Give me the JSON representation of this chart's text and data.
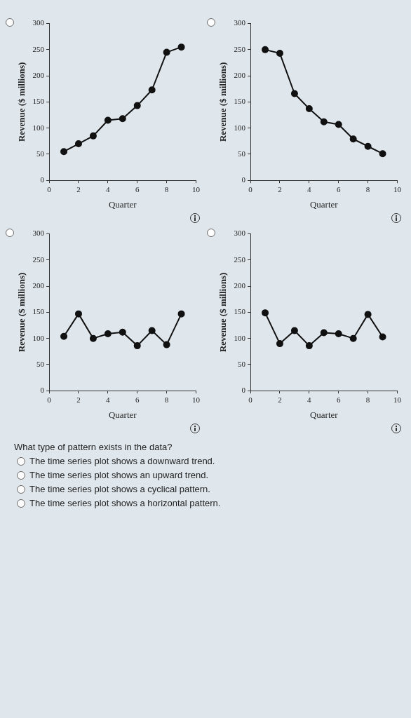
{
  "chart_data": [
    {
      "type": "line",
      "xlabel": "Quarter",
      "ylabel": "Revenue ($ millions)",
      "x": [
        1,
        2,
        3,
        4,
        5,
        6,
        7,
        8,
        9
      ],
      "xlim": [
        0,
        10
      ],
      "xticks": [
        0,
        2,
        4,
        6,
        8,
        10
      ],
      "ylim": [
        0,
        300
      ],
      "yticks": [
        0,
        50,
        100,
        150,
        200,
        250,
        300
      ],
      "marker": "circle",
      "line_style": "solid",
      "grid": false,
      "legend": false,
      "series": [
        {
          "color": "#111111",
          "values": [
            55,
            70,
            85,
            115,
            118,
            143,
            173,
            245,
            255
          ]
        }
      ]
    },
    {
      "type": "line",
      "xlabel": "Quarter",
      "ylabel": "Revenue ($ millions)",
      "x": [
        1,
        2,
        3,
        4,
        5,
        6,
        7,
        8,
        9
      ],
      "xlim": [
        0,
        10
      ],
      "xticks": [
        0,
        2,
        4,
        6,
        8,
        10
      ],
      "ylim": [
        0,
        300
      ],
      "yticks": [
        0,
        50,
        100,
        150,
        200,
        250,
        300
      ],
      "marker": "circle",
      "line_style": "solid",
      "grid": false,
      "legend": false,
      "series": [
        {
          "color": "#111111",
          "values": [
            250,
            243,
            166,
            137,
            112,
            107,
            79,
            65,
            51
          ]
        }
      ]
    },
    {
      "type": "line",
      "xlabel": "Quarter",
      "ylabel": "Revenue ($ millions)",
      "x": [
        1,
        2,
        3,
        4,
        5,
        6,
        7,
        8,
        9
      ],
      "xlim": [
        0,
        10
      ],
      "xticks": [
        0,
        2,
        4,
        6,
        8,
        10
      ],
      "ylim": [
        0,
        300
      ],
      "yticks": [
        0,
        50,
        100,
        150,
        200,
        250,
        300
      ],
      "marker": "circle",
      "line_style": "solid",
      "grid": false,
      "legend": false,
      "series": [
        {
          "color": "#111111",
          "values": [
            104,
            147,
            100,
            109,
            112,
            86,
            115,
            88,
            147
          ]
        }
      ]
    },
    {
      "type": "line",
      "xlabel": "Quarter",
      "ylabel": "Revenue ($ millions)",
      "x": [
        1,
        2,
        3,
        4,
        5,
        6,
        7,
        8,
        9
      ],
      "xlim": [
        0,
        10
      ],
      "xticks": [
        0,
        2,
        4,
        6,
        8,
        10
      ],
      "ylim": [
        0,
        300
      ],
      "yticks": [
        0,
        50,
        100,
        150,
        200,
        250,
        300
      ],
      "marker": "circle",
      "line_style": "solid",
      "grid": false,
      "legend": false,
      "series": [
        {
          "color": "#111111",
          "values": [
            149,
            90,
            115,
            86,
            111,
            109,
            100,
            146,
            103
          ]
        }
      ]
    },
    {
      "type": "other",
      "title": "What type of pattern exists in the data?",
      "annotations": [
        "The time series plot shows a downward trend.",
        "The time series plot shows an upward trend.",
        "The time series plot shows a cyclical pattern.",
        "The time series plot shows a horizontal pattern."
      ]
    }
  ]
}
